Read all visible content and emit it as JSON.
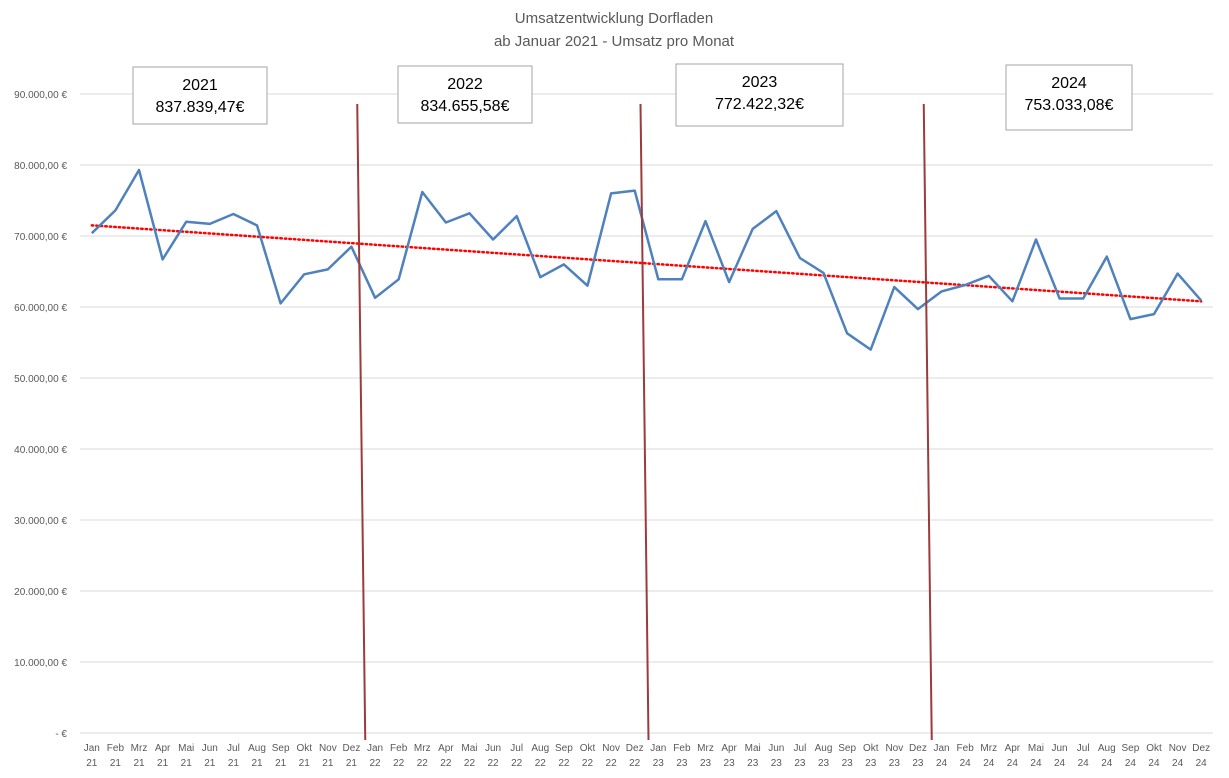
{
  "chart_data": {
    "type": "line",
    "title": [
      "Umsatzentwicklung Dorfladen",
      "ab Januar 2021 - Umsatz pro Monat"
    ],
    "xlabel": "",
    "ylabel": "",
    "ylim": [
      0,
      90000
    ],
    "yticks": [
      0,
      10000,
      20000,
      30000,
      40000,
      50000,
      60000,
      70000,
      80000,
      90000
    ],
    "ytick_labels": [
      "-   €",
      "10.000,00 €",
      "20.000,00 €",
      "30.000,00 €",
      "40.000,00 €",
      "50.000,00 €",
      "60.000,00 €",
      "70.000,00 €",
      "80.000,00 €",
      "90.000,00 €"
    ],
    "grid": true,
    "legend": "none",
    "months": [
      "Jan",
      "Feb",
      "Mrz",
      "Apr",
      "Mai",
      "Jun",
      "Jul",
      "Aug",
      "Sep",
      "Okt",
      "Nov",
      "Dez"
    ],
    "years": [
      "21",
      "22",
      "23",
      "24"
    ],
    "series": [
      {
        "color": "#4f81bd",
        "values": [
          70400,
          73600,
          79300,
          66700,
          72000,
          71700,
          73100,
          71500,
          60500,
          64600,
          65300,
          68500,
          61300,
          63900,
          76200,
          71900,
          73200,
          69500,
          72800,
          64200,
          66000,
          63000,
          76000,
          76400,
          63900,
          63900,
          72100,
          63500,
          71000,
          73500,
          66900,
          64800,
          56300,
          54000,
          62800,
          59700,
          62200,
          63100,
          64400,
          60800,
          69500,
          61200,
          61200,
          67100,
          58300,
          59000,
          64700,
          60900
        ]
      }
    ],
    "trendline": {
      "color": "#ff0000",
      "start": 71500,
      "end": 60800
    },
    "year_dividers": {
      "color": "#9b3b3b",
      "after_index": [
        11,
        23,
        35
      ]
    },
    "annotations": [
      {
        "year": "2021",
        "total": "837.839,47€"
      },
      {
        "year": "2022",
        "total": "834.655,58€"
      },
      {
        "year": "2023",
        "total": "772.422,32€"
      },
      {
        "year": "2024",
        "total": "753.033,08€"
      }
    ]
  }
}
